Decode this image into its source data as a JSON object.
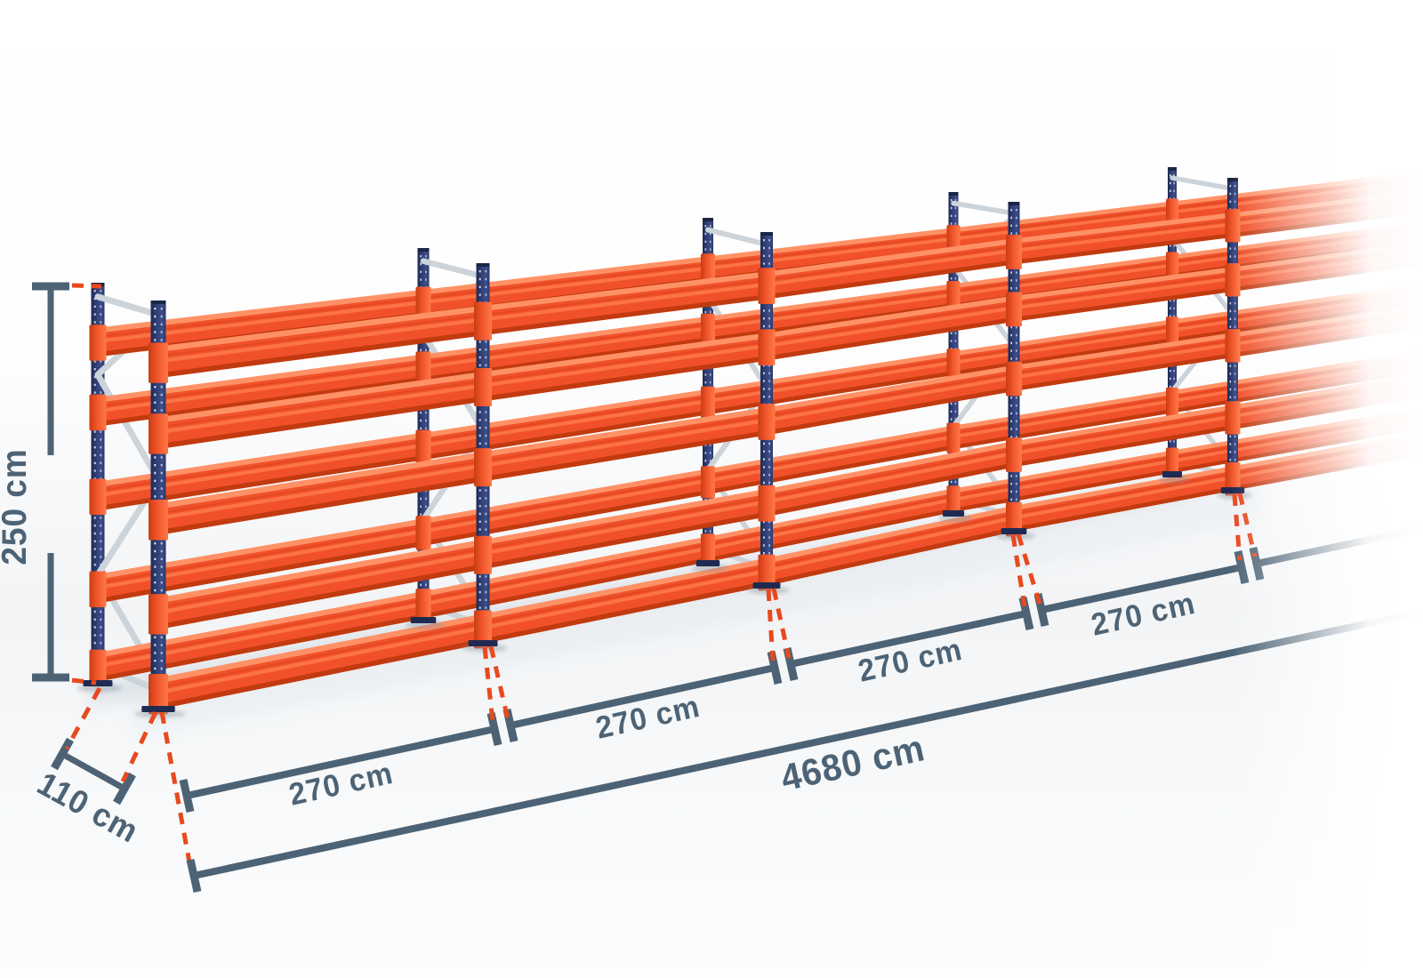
{
  "diagram": {
    "labels": {
      "height": "250 cm",
      "depth": "110 cm",
      "bay_1": "270 cm",
      "bay_2": "270 cm",
      "bay_3": "270 cm",
      "bay_4": "270 cm",
      "total_length": "4680 cm"
    },
    "structure": {
      "visible_frames": 5,
      "beam_levels": 5,
      "labeled_bays": 4
    },
    "colors": {
      "dimension_lines": "#4d6375",
      "leader_dashes": "#e8491f",
      "beam_orange": "#f1512a",
      "upright_navy": "#2e3d74",
      "brace_silver": "#ccd3d9",
      "background": "#ffffff"
    }
  }
}
